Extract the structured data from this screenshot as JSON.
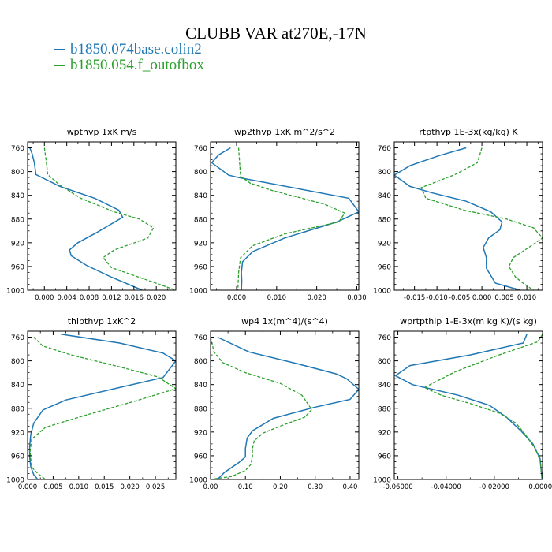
{
  "title": "CLUBB VAR at270E,-17N",
  "colors": {
    "series_0": "#1f77b4",
    "series_1": "#2ca02c",
    "axis": "#000000"
  },
  "legend": [
    {
      "name": "b1850.074base.colin2",
      "color": "#1f77b4",
      "style": "solid"
    },
    {
      "name": "b1850.054.f_outofbox",
      "color": "#2ca02c",
      "style": "dashed"
    }
  ],
  "chart_data": [
    {
      "type": "line",
      "title": "wpthvp   1xK m/s",
      "xlabel": "",
      "ylabel": "",
      "xlim": [
        -0.003,
        0.0235
      ],
      "ylim": [
        1000,
        750
      ],
      "y_inverted": true,
      "x_ticks": [
        0.0,
        0.004,
        0.008,
        0.012,
        0.016,
        0.02
      ],
      "x_tick_labels": [
        "0.000",
        "0.004",
        "0.008",
        "0.012",
        "0.016",
        "0.020"
      ],
      "y_ticks": [
        760,
        800,
        840,
        880,
        920,
        960,
        1000
      ],
      "y_tick_labels": [
        "760",
        "800",
        "840",
        "880",
        "920",
        "960",
        "1000"
      ],
      "series": [
        {
          "name": "b1850.074base.colin2",
          "x": [
            -0.0026,
            -0.0022,
            -0.0018,
            -0.0015,
            0.0028,
            0.009,
            0.0133,
            0.014,
            0.0095,
            0.006,
            0.0045,
            0.0048,
            0.0075,
            0.012,
            0.0175
          ],
          "y": [
            760,
            770,
            785,
            805,
            825,
            845,
            865,
            877,
            902,
            920,
            932,
            942,
            958,
            978,
            1000
          ]
        },
        {
          "name": "b1850.054.f_outofbox",
          "x": [
            0.0,
            0.0003,
            0.0006,
            0.0028,
            0.0065,
            0.0125,
            0.017,
            0.0195,
            0.0185,
            0.0125,
            0.0105,
            0.012,
            0.0175,
            0.0235
          ],
          "y": [
            760,
            780,
            805,
            823,
            845,
            868,
            880,
            895,
            912,
            932,
            945,
            962,
            980,
            1000
          ]
        }
      ]
    },
    {
      "type": "line",
      "title": "wp2thvp   1xK m^2/s^2",
      "xlabel": "",
      "ylabel": "",
      "xlim": [
        -0.0065,
        0.0305
      ],
      "ylim": [
        1000,
        750
      ],
      "y_inverted": true,
      "x_ticks": [
        0.0,
        0.01,
        0.02,
        0.03
      ],
      "x_tick_labels": [
        "0.000",
        "0.010",
        "0.020",
        "0.030"
      ],
      "y_ticks": [
        760,
        800,
        840,
        880,
        920,
        960,
        1000
      ],
      "y_tick_labels": [
        "760",
        "800",
        "840",
        "880",
        "920",
        "960",
        "1000"
      ],
      "series": [
        {
          "name": "b1850.074base.colin2",
          "x": [
            -0.0015,
            -0.0045,
            -0.0062,
            -0.002,
            0.0005,
            0.028,
            0.0305,
            0.025,
            0.012,
            0.004,
            0.0015,
            0.0012,
            0.0013,
            0.0012
          ],
          "y": [
            760,
            772,
            785,
            806,
            810,
            845,
            868,
            885,
            912,
            935,
            952,
            970,
            985,
            1000
          ]
        },
        {
          "name": "b1850.054.f_outofbox",
          "x": [
            0.0005,
            0.0008,
            0.001,
            0.0035,
            0.009,
            0.022,
            0.027,
            0.0255,
            0.012,
            0.004,
            0.001,
            0.0005,
            0.0003
          ],
          "y": [
            760,
            790,
            808,
            820,
            832,
            855,
            870,
            885,
            905,
            925,
            945,
            970,
            1000
          ]
        }
      ]
    },
    {
      "type": "line",
      "title": "rtpthvp   1E-3x(kg/kg) K",
      "xlabel": "",
      "ylabel": "",
      "xlim": [
        -0.0195,
        0.0135
      ],
      "ylim": [
        1000,
        750
      ],
      "y_inverted": true,
      "x_ticks": [
        -0.015,
        -0.01,
        -0.005,
        0.0,
        0.005,
        0.01
      ],
      "x_tick_labels": [
        "-0.015",
        "-0.010",
        "-0.005",
        "0.000",
        "0.005",
        "0.010"
      ],
      "y_ticks": [
        760,
        800,
        840,
        880,
        920,
        960,
        1000
      ],
      "y_tick_labels": [
        "760",
        "800",
        "840",
        "880",
        "920",
        "960",
        "1000"
      ],
      "series": [
        {
          "name": "b1850.074base.colin2",
          "x": [
            -0.0035,
            -0.0095,
            -0.016,
            -0.0195,
            -0.016,
            -0.011,
            -0.0035,
            0.002,
            0.0045,
            0.004,
            0.0015,
            0.0003,
            0.001,
            0.001,
            0.003,
            0.0085
          ],
          "y": [
            760,
            773,
            790,
            806,
            825,
            836,
            850,
            868,
            885,
            898,
            912,
            928,
            945,
            963,
            988,
            1000
          ]
        },
        {
          "name": "b1850.054.f_outofbox",
          "x": [
            0.0,
            -0.001,
            -0.006,
            -0.0135,
            -0.013,
            -0.0125,
            -0.004,
            0.0055,
            0.0115,
            0.0135,
            0.01,
            0.007,
            0.006,
            0.0075,
            0.0095,
            0.0115
          ],
          "y": [
            760,
            785,
            805,
            827,
            835,
            845,
            865,
            880,
            895,
            912,
            930,
            945,
            960,
            978,
            990,
            1000
          ]
        }
      ]
    },
    {
      "type": "line",
      "title": "thlpthvp   1xK^2",
      "xlabel": "",
      "ylabel": "",
      "xlim": [
        0.0,
        0.029
      ],
      "ylim": [
        1000,
        750
      ],
      "y_inverted": true,
      "x_ticks": [
        0.0,
        0.005,
        0.01,
        0.015,
        0.02,
        0.025
      ],
      "x_tick_labels": [
        "0.000",
        "0.005",
        "0.010",
        "0.015",
        "0.020",
        "0.025"
      ],
      "y_ticks": [
        760,
        800,
        840,
        880,
        920,
        960,
        1000
      ],
      "y_tick_labels": [
        "760",
        "800",
        "840",
        "880",
        "920",
        "960",
        "1000"
      ],
      "series": [
        {
          "name": "b1850.074base.colin2",
          "x": [
            0.0065,
            0.018,
            0.0265,
            0.029,
            0.0265,
            0.017,
            0.0075,
            0.003,
            0.0012,
            0.0006,
            0.0004,
            0.0004,
            0.0006,
            0.0012,
            0.002
          ],
          "y": [
            755,
            770,
            787,
            800,
            828,
            847,
            866,
            883,
            905,
            925,
            945,
            962,
            978,
            992,
            1000
          ]
        },
        {
          "name": "b1850.054.f_outofbox",
          "x": [
            0.0012,
            0.003,
            0.0085,
            0.017,
            0.0255,
            0.029,
            0.021,
            0.012,
            0.0035,
            0.0008,
            0.0005,
            0.0006,
            0.0009,
            0.002,
            0.0035
          ],
          "y": [
            760,
            775,
            790,
            808,
            827,
            847,
            868,
            890,
            912,
            932,
            952,
            965,
            980,
            990,
            1000
          ]
        }
      ]
    },
    {
      "type": "line",
      "title": "wp4   1x(m^4)/(s^4)",
      "xlabel": "",
      "ylabel": "",
      "xlim": [
        0.0,
        0.425
      ],
      "ylim": [
        1000,
        750
      ],
      "y_inverted": true,
      "x_ticks": [
        0.0,
        0.1,
        0.2,
        0.3,
        0.4
      ],
      "x_tick_labels": [
        "0.00",
        "0.10",
        "0.20",
        "0.30",
        "0.40"
      ],
      "y_ticks": [
        760,
        800,
        840,
        880,
        920,
        960,
        1000
      ],
      "y_tick_labels": [
        "760",
        "800",
        "840",
        "880",
        "920",
        "960",
        "1000"
      ],
      "series": [
        {
          "name": "b1850.074base.colin2",
          "x": [
            0.02,
            0.11,
            0.25,
            0.36,
            0.39,
            0.425,
            0.4,
            0.3,
            0.18,
            0.12,
            0.105,
            0.1,
            0.1,
            0.08,
            0.04,
            0.02
          ],
          "y": [
            760,
            785,
            805,
            822,
            830,
            848,
            865,
            878,
            897,
            918,
            930,
            948,
            962,
            972,
            988,
            1000
          ]
        },
        {
          "name": "b1850.054.f_outofbox",
          "x": [
            0.0,
            0.01,
            0.035,
            0.1,
            0.2,
            0.262,
            0.29,
            0.27,
            0.2,
            0.15,
            0.125,
            0.12,
            0.12,
            0.115,
            0.1,
            0.06,
            0.0
          ],
          "y": [
            760,
            785,
            803,
            820,
            838,
            858,
            882,
            895,
            910,
            922,
            935,
            948,
            962,
            975,
            985,
            995,
            1000
          ]
        }
      ]
    },
    {
      "type": "line",
      "title": "wprtpthlp   1-E-3x(m kg K)/(s kg)",
      "xlabel": "",
      "ylabel": "",
      "xlim": [
        -0.0615,
        0.0
      ],
      "ylim": [
        1000,
        750
      ],
      "y_inverted": true,
      "x_ticks": [
        -0.06,
        -0.04,
        -0.02,
        0.0
      ],
      "x_tick_labels": [
        "-0.06000",
        "-0.04000",
        "-0.02000",
        "0.00000"
      ],
      "y_ticks": [
        760,
        800,
        840,
        880,
        920,
        960,
        1000
      ],
      "y_tick_labels": [
        "760",
        "800",
        "840",
        "880",
        "920",
        "960",
        "1000"
      ],
      "series": [
        {
          "name": "b1850.074base.colin2",
          "x": [
            -0.0065,
            -0.008,
            -0.03,
            -0.055,
            -0.061,
            -0.054,
            -0.035,
            -0.022,
            -0.015,
            -0.009,
            -0.004,
            -0.001,
            -0.0002
          ],
          "y": [
            755,
            770,
            790,
            808,
            825,
            840,
            858,
            875,
            895,
            918,
            940,
            965,
            1000
          ]
        },
        {
          "name": "b1850.054.f_outofbox",
          "x": [
            0.0,
            -0.002,
            -0.018,
            -0.036,
            -0.049,
            -0.042,
            -0.03,
            -0.018,
            -0.011,
            -0.007,
            -0.003,
            -0.001,
            -0.0002
          ],
          "y": [
            755,
            768,
            790,
            818,
            845,
            858,
            872,
            888,
            905,
            925,
            948,
            968,
            1000
          ]
        }
      ]
    }
  ]
}
